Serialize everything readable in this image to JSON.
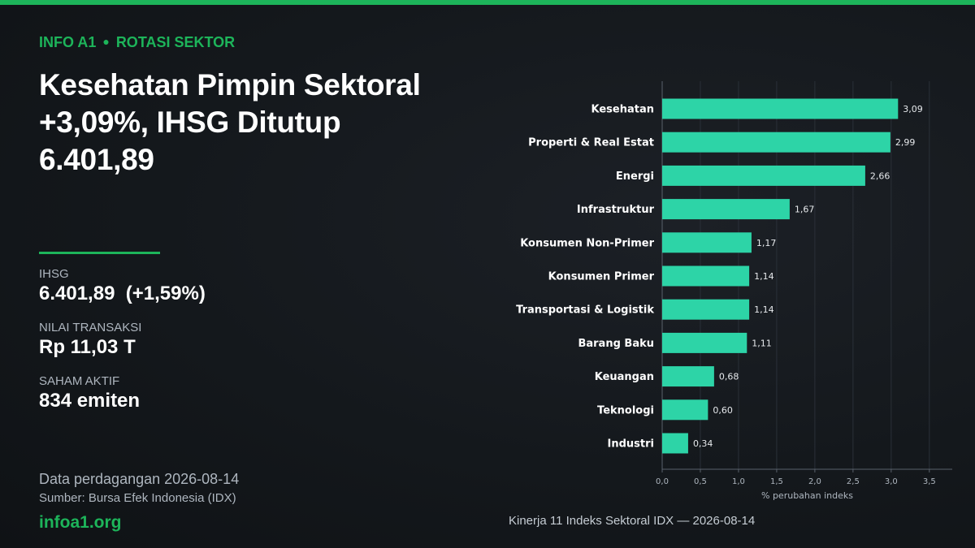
{
  "kicker": {
    "brand": "INFO A1",
    "section": "ROTASI SEKTOR"
  },
  "headline": "Kesehatan Pimpin Sektoral +3,09%, IHSG Ditutup 6.401,89",
  "stats": {
    "ihsg_label": "IHSG",
    "ihsg_value": "6.401,89  (+1,59%)",
    "turnover_label": "NILAI TRANSAKSI",
    "turnover_value": "Rp 11,03 T",
    "active_label": "SAHAM AKTIF",
    "active_value": "834 emiten"
  },
  "footer": {
    "date_line": "Data perdagangan 2026-08-14",
    "source_line": "Sumber: Bursa Efek Indonesia (IDX)",
    "site": "infoa1.org"
  },
  "colors": {
    "accent": "#1db45a",
    "bar": "#2dd4a7"
  },
  "chart_caption": "Kinerja 11 Indeks Sektoral IDX — 2026-08-14",
  "chart_data": {
    "type": "bar",
    "orientation": "horizontal",
    "categories": [
      "Kesehatan",
      "Properti & Real Estat",
      "Energi",
      "Infrastruktur",
      "Konsumen Non-Primer",
      "Konsumen Primer",
      "Transportasi & Logistik",
      "Barang Baku",
      "Keuangan",
      "Teknologi",
      "Industri"
    ],
    "values": [
      3.09,
      2.99,
      2.66,
      1.67,
      1.17,
      1.14,
      1.14,
      1.11,
      0.68,
      0.6,
      0.34
    ],
    "value_labels": [
      "3,09",
      "2,99",
      "2,66",
      "1,67",
      "1,17",
      "1,14",
      "1,14",
      "1,11",
      "0,68",
      "0,60",
      "0,34"
    ],
    "xlabel": "% perubahan indeks",
    "xlim": [
      0,
      3.8
    ],
    "xticks": [
      0,
      0.5,
      1.0,
      1.5,
      2.0,
      2.5,
      3.0,
      3.5
    ],
    "xtick_labels": [
      "0,0",
      "0,5",
      "1,0",
      "1,5",
      "2,0",
      "2,5",
      "3,0",
      "3,5"
    ],
    "grid": "vertical"
  }
}
